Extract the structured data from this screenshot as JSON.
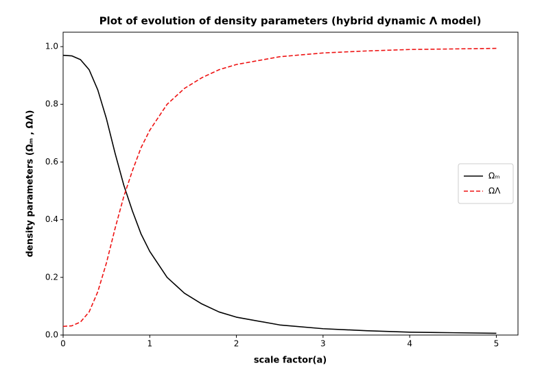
{
  "chart_data": {
    "type": "line",
    "title": "Plot of evolution of density parameters (hybrid dynamic Λ model)",
    "xlabel": "scale factor(a)",
    "ylabel": "density parameters (Ωₘ , ΩΛ)",
    "x": [
      0,
      0.1,
      0.2,
      0.3,
      0.4,
      0.5,
      0.6,
      0.7,
      0.8,
      0.9,
      1.0,
      1.2,
      1.4,
      1.6,
      1.8,
      2.0,
      2.5,
      3.0,
      3.5,
      4.0,
      4.5,
      5.0
    ],
    "series": [
      {
        "name": "Ωₘ",
        "color": "#000000",
        "style": "solid",
        "values": [
          0.97,
          0.968,
          0.955,
          0.92,
          0.85,
          0.75,
          0.63,
          0.52,
          0.43,
          0.35,
          0.29,
          0.2,
          0.145,
          0.108,
          0.08,
          0.062,
          0.035,
          0.022,
          0.015,
          0.01,
          0.008,
          0.006
        ]
      },
      {
        "name": "ΩΛ",
        "color": "#ee1111",
        "style": "dashed",
        "values": [
          0.03,
          0.032,
          0.045,
          0.08,
          0.15,
          0.25,
          0.37,
          0.48,
          0.57,
          0.65,
          0.71,
          0.8,
          0.855,
          0.892,
          0.92,
          0.938,
          0.965,
          0.978,
          0.985,
          0.99,
          0.992,
          0.994
        ]
      }
    ],
    "xlim": [
      0,
      5.25
    ],
    "xticks": [
      0,
      1,
      2,
      3,
      4,
      5
    ],
    "ylim": [
      0,
      1.05
    ],
    "yticks": [
      {
        "value": 0,
        "label": "0.0"
      },
      0.2,
      0.4,
      0.6,
      0.8,
      {
        "value": 1,
        "label": "1.0"
      }
    ],
    "legend": "right"
  }
}
